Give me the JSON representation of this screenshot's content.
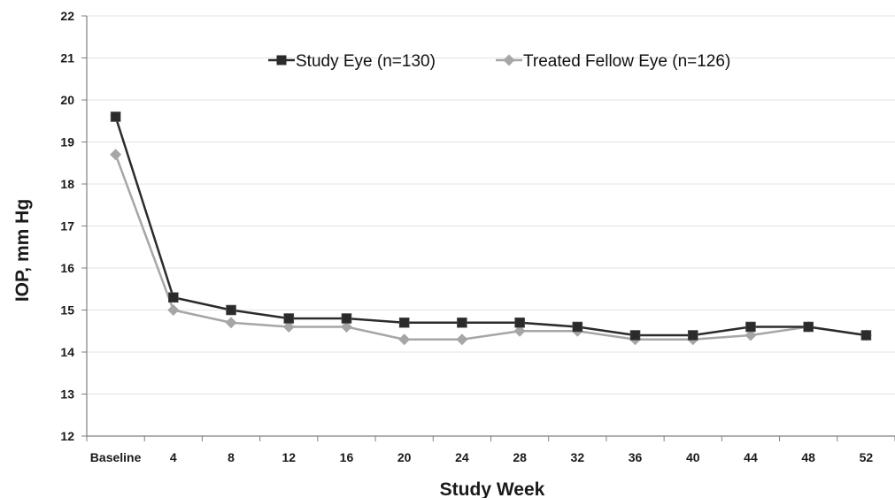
{
  "chart_data": {
    "type": "line",
    "title": "",
    "xlabel": "Study Week",
    "ylabel": "IOP, mm Hg",
    "categories": [
      "Baseline",
      "4",
      "8",
      "12",
      "16",
      "20",
      "24",
      "28",
      "32",
      "36",
      "40",
      "44",
      "48",
      "52"
    ],
    "ylim": [
      12,
      22
    ],
    "yticks": [
      "12",
      "13",
      "14",
      "15",
      "16",
      "17",
      "18",
      "19",
      "20",
      "21",
      "22"
    ],
    "grid": true,
    "legend_position": "top",
    "series": [
      {
        "name": "Study Eye (n=130)",
        "color": "#2b2b2b",
        "marker": "square",
        "values": [
          19.6,
          15.3,
          15.0,
          14.8,
          14.8,
          14.7,
          14.7,
          14.7,
          14.6,
          14.4,
          14.4,
          14.6,
          14.6,
          14.4
        ]
      },
      {
        "name": "Treated Fellow Eye (n=126)",
        "color": "#a6a6a6",
        "marker": "diamond",
        "values": [
          18.7,
          15.0,
          14.7,
          14.6,
          14.6,
          14.3,
          14.3,
          14.5,
          14.5,
          14.3,
          14.3,
          14.4,
          14.6,
          14.4
        ]
      }
    ]
  }
}
